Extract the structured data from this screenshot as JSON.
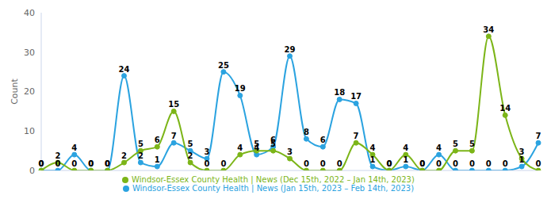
{
  "chart_data": {
    "type": "line",
    "y_label": "Count",
    "categories": [
      null,
      null,
      null,
      null,
      null,
      null,
      null,
      null,
      null,
      null,
      null,
      null,
      null,
      null,
      null,
      null,
      null,
      null,
      null,
      null,
      null,
      null,
      null,
      null,
      null,
      null,
      null,
      null,
      null,
      null,
      null
    ],
    "series": [
      {
        "name": "Windsor-Essex County Health | News (Jan 15th, 2023 – Feb 14th, 2023)",
        "color": "#2ba3e0",
        "values": [
          0,
          0,
          4,
          0,
          0,
          24,
          2,
          1,
          7,
          5,
          3,
          25,
          19,
          4,
          6,
          29,
          8,
          6,
          18,
          17,
          1,
          0,
          1,
          0,
          4,
          0,
          0,
          0,
          0,
          1,
          7
        ]
      },
      {
        "name": "Windsor-Essex County Health | News (Dec 15th, 2022 – Jan 14th, 2023)",
        "color": "#7cb518",
        "values": [
          0,
          2,
          0,
          0,
          0,
          2,
          5,
          6,
          15,
          2,
          0,
          0,
          4,
          5,
          5,
          3,
          0,
          0,
          0,
          7,
          4,
          0,
          4,
          0,
          0,
          5,
          5,
          34,
          14,
          3,
          0
        ]
      }
    ],
    "ylim": [
      0,
      40
    ],
    "yticks": [
      0,
      10,
      20,
      30,
      40
    ],
    "grid": false,
    "legend": "bottom",
    "data_labels": true,
    "tick_labels": "y",
    "marker": "circle",
    "line_style": "smooth"
  }
}
